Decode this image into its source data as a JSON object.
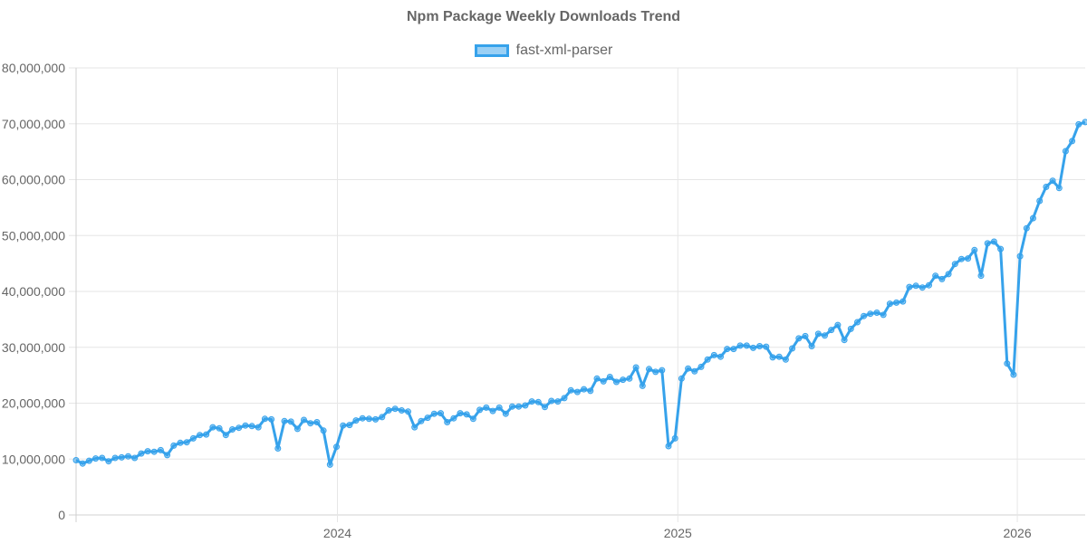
{
  "chart_data": {
    "type": "line",
    "title": "Npm Package Weekly Downloads Trend",
    "xlabel": "",
    "ylabel": "",
    "ylim": [
      0,
      80000000
    ],
    "y_ticks": [
      "0",
      "10,000,000",
      "20,000,000",
      "30,000,000",
      "40,000,000",
      "50,000,000",
      "60,000,000",
      "70,000,000",
      "80,000,000"
    ],
    "x_ticks": [
      "2024",
      "2025",
      "2026"
    ],
    "xlim": [
      "2023-03-26",
      "2026-03-15"
    ],
    "grid": true,
    "legend_position": "top-center",
    "color": "#36a2eb",
    "series": [
      {
        "name": "fast-xml-parser",
        "x": [
          "2023-03-26",
          "2023-04-02",
          "2023-04-09",
          "2023-04-16",
          "2023-04-23",
          "2023-04-30",
          "2023-05-07",
          "2023-05-14",
          "2023-05-21",
          "2023-05-28",
          "2023-06-04",
          "2023-06-11",
          "2023-06-18",
          "2023-06-25",
          "2023-07-02",
          "2023-07-09",
          "2023-07-16",
          "2023-07-23",
          "2023-07-30",
          "2023-08-06",
          "2023-08-13",
          "2023-08-20",
          "2023-08-27",
          "2023-09-03",
          "2023-09-10",
          "2023-09-17",
          "2023-09-24",
          "2023-10-01",
          "2023-10-08",
          "2023-10-15",
          "2023-10-22",
          "2023-10-29",
          "2023-11-05",
          "2023-11-12",
          "2023-11-19",
          "2023-11-26",
          "2023-12-03",
          "2023-12-10",
          "2023-12-17",
          "2023-12-24",
          "2023-12-31",
          "2024-01-07",
          "2024-01-14",
          "2024-01-21",
          "2024-01-28",
          "2024-02-04",
          "2024-02-11",
          "2024-02-18",
          "2024-02-25",
          "2024-03-03",
          "2024-03-10",
          "2024-03-17",
          "2024-03-24",
          "2024-03-31",
          "2024-04-07",
          "2024-04-14",
          "2024-04-21",
          "2024-04-28",
          "2024-05-05",
          "2024-05-12",
          "2024-05-19",
          "2024-05-26",
          "2024-06-02",
          "2024-06-09",
          "2024-06-16",
          "2024-06-23",
          "2024-06-30",
          "2024-07-07",
          "2024-07-14",
          "2024-07-21",
          "2024-07-28",
          "2024-08-04",
          "2024-08-11",
          "2024-08-18",
          "2024-08-25",
          "2024-09-01",
          "2024-09-08",
          "2024-09-15",
          "2024-09-22",
          "2024-09-29",
          "2024-10-06",
          "2024-10-13",
          "2024-10-20",
          "2024-10-27",
          "2024-11-03",
          "2024-11-10",
          "2024-11-17",
          "2024-11-24",
          "2024-12-01",
          "2024-12-08",
          "2024-12-15",
          "2024-12-22",
          "2024-12-29",
          "2025-01-05",
          "2025-01-12",
          "2025-01-19",
          "2025-01-26",
          "2025-02-02",
          "2025-02-09",
          "2025-02-16",
          "2025-02-23",
          "2025-03-02",
          "2025-03-09",
          "2025-03-16",
          "2025-03-23",
          "2025-03-30",
          "2025-04-06",
          "2025-04-13",
          "2025-04-20",
          "2025-04-27",
          "2025-05-04",
          "2025-05-11",
          "2025-05-18",
          "2025-05-25",
          "2025-06-01",
          "2025-06-08",
          "2025-06-15",
          "2025-06-22",
          "2025-06-29",
          "2025-07-06",
          "2025-07-13",
          "2025-07-20",
          "2025-07-27",
          "2025-08-03",
          "2025-08-10",
          "2025-08-17",
          "2025-08-24",
          "2025-08-31",
          "2025-09-07",
          "2025-09-14",
          "2025-09-21",
          "2025-09-28",
          "2025-10-05",
          "2025-10-12",
          "2025-10-19",
          "2025-10-26",
          "2025-11-02",
          "2025-11-09",
          "2025-11-16",
          "2025-11-23",
          "2025-11-30",
          "2025-12-07",
          "2025-12-14",
          "2025-12-21",
          "2025-12-28",
          "2026-01-04",
          "2026-01-11",
          "2026-01-18",
          "2026-01-25",
          "2026-02-01",
          "2026-02-08",
          "2026-02-15",
          "2026-02-22",
          "2026-03-01",
          "2026-03-08",
          "2026-03-15"
        ],
        "values": [
          9800000,
          9200000,
          9700000,
          10100000,
          10200000,
          9600000,
          10200000,
          10300000,
          10500000,
          10200000,
          11000000,
          11400000,
          11300000,
          11600000,
          10700000,
          12400000,
          12900000,
          13000000,
          13700000,
          14300000,
          14400000,
          15700000,
          15500000,
          14300000,
          15300000,
          15600000,
          16000000,
          15900000,
          15700000,
          17200000,
          17100000,
          11900000,
          16800000,
          16700000,
          15400000,
          17000000,
          16400000,
          16600000,
          15100000,
          9000000,
          12200000,
          16000000,
          16100000,
          16900000,
          17300000,
          17200000,
          17100000,
          17500000,
          18700000,
          19000000,
          18700000,
          18500000,
          15700000,
          16800000,
          17400000,
          18100000,
          18200000,
          16600000,
          17300000,
          18200000,
          18000000,
          17200000,
          18800000,
          19200000,
          18600000,
          19200000,
          18100000,
          19400000,
          19400000,
          19600000,
          20300000,
          20200000,
          19300000,
          20400000,
          20300000,
          20900000,
          22300000,
          22000000,
          22500000,
          22200000,
          24400000,
          23900000,
          24700000,
          23800000,
          24200000,
          24400000,
          26400000,
          23100000,
          26100000,
          25600000,
          25900000,
          12300000,
          13700000,
          24400000,
          26200000,
          25700000,
          26500000,
          27800000,
          28600000,
          28300000,
          29700000,
          29700000,
          30300000,
          30300000,
          29900000,
          30200000,
          30100000,
          28200000,
          28300000,
          27800000,
          29800000,
          31600000,
          32000000,
          30200000,
          32400000,
          32100000,
          33100000,
          34000000,
          31300000,
          33300000,
          34500000,
          35600000,
          36000000,
          36200000,
          35800000,
          37800000,
          38000000,
          38200000,
          40800000,
          41000000,
          40700000,
          41100000,
          42800000,
          42200000,
          43100000,
          44900000,
          45800000,
          45900000,
          47400000,
          42800000,
          48600000,
          48900000,
          47600000,
          27100000,
          25100000,
          46300000,
          51300000,
          53100000,
          56200000,
          58700000,
          59800000,
          58500000,
          65100000,
          66900000,
          69900000,
          70300000
        ]
      }
    ]
  }
}
